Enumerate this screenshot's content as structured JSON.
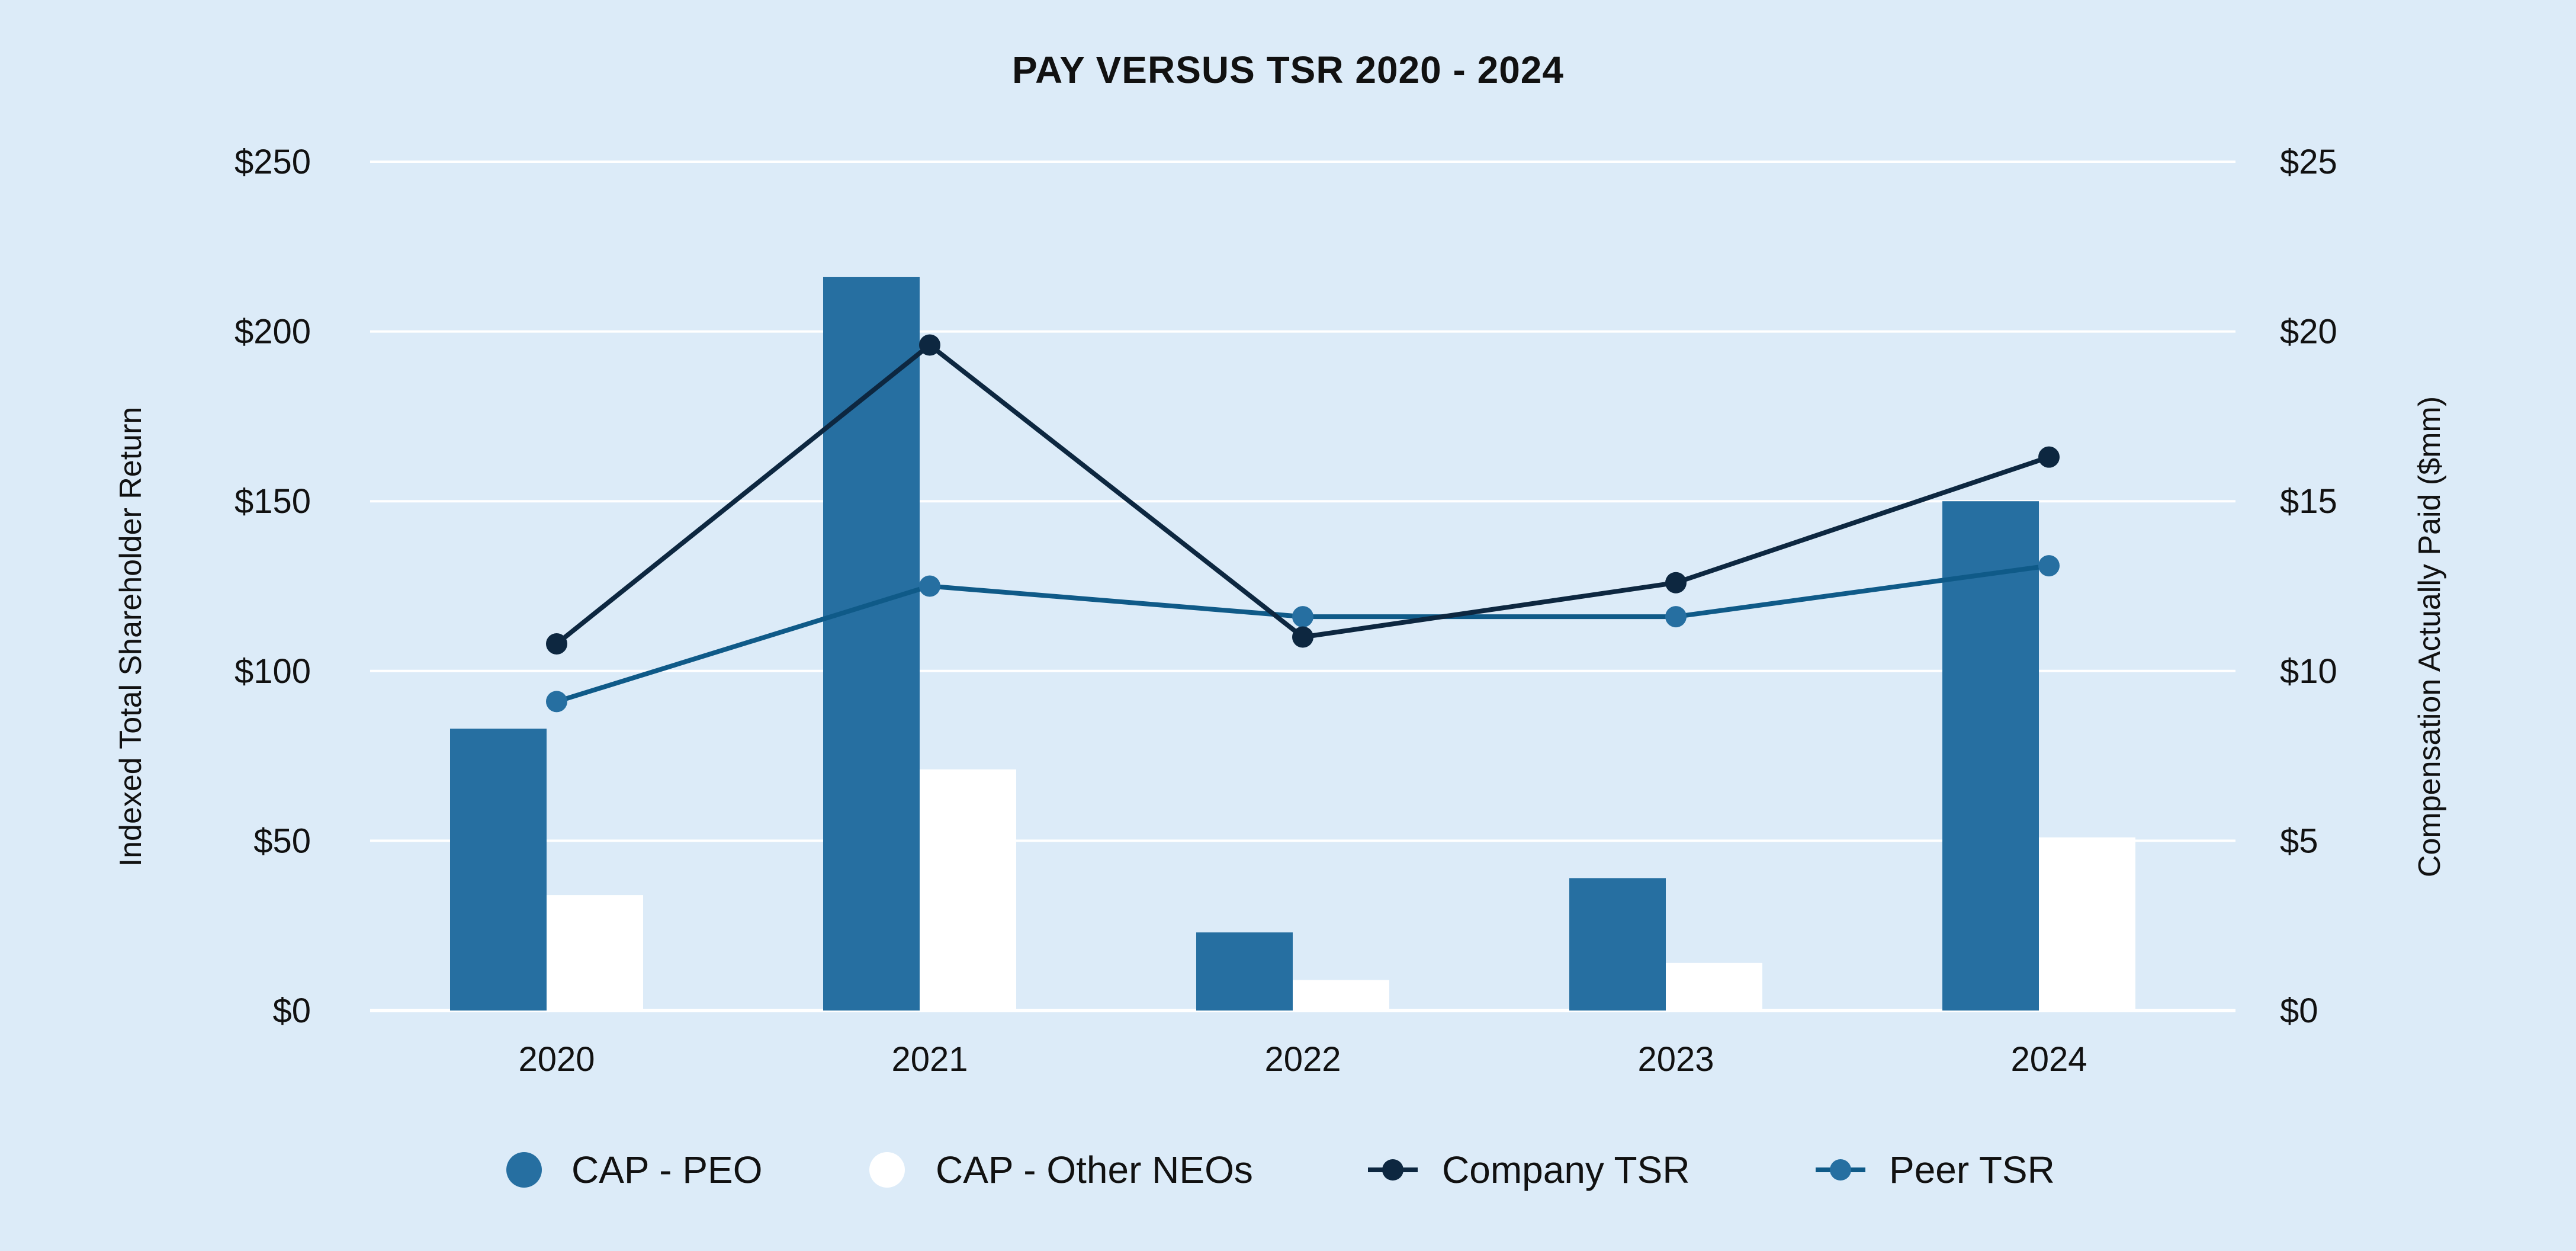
{
  "chart_data": {
    "type": "bar",
    "title": "PAY VERSUS TSR 2020 - 2024",
    "categories": [
      "2020",
      "2021",
      "2022",
      "2023",
      "2024"
    ],
    "y_left": {
      "label": "Indexed Total Shareholder Return",
      "ylim": [
        0,
        250
      ],
      "ticks": [
        0,
        50,
        100,
        150,
        200,
        250
      ],
      "tick_labels": [
        "$0",
        "$50",
        "$100",
        "$150",
        "$200",
        "$250"
      ]
    },
    "y_right": {
      "label": "Compensation Actually Paid ($mm)",
      "ylim": [
        0,
        25
      ],
      "ticks": [
        0,
        5,
        10,
        15,
        20,
        25
      ],
      "tick_labels": [
        "$0",
        "$5",
        "$10",
        "$15",
        "$20",
        "$25"
      ]
    },
    "series": [
      {
        "name": "CAP - PEO",
        "kind": "bar",
        "axis": "right",
        "color": "#266fa1",
        "values": [
          8.3,
          21.6,
          2.3,
          3.9,
          15.0
        ]
      },
      {
        "name": "CAP - Other NEOs",
        "kind": "bar",
        "axis": "right",
        "color": "#ffffff",
        "values": [
          3.4,
          7.1,
          0.9,
          1.4,
          5.1
        ]
      },
      {
        "name": "Company TSR",
        "kind": "line",
        "axis": "left",
        "color": "#0d2740",
        "values": [
          108,
          196,
          110,
          126,
          163
        ]
      },
      {
        "name": "Peer TSR",
        "kind": "line",
        "axis": "left",
        "color": "#0f5a88",
        "marker_color": "#266fa1",
        "values": [
          91,
          125,
          116,
          116,
          131
        ]
      }
    ],
    "legend_position": "bottom",
    "grid": true
  }
}
